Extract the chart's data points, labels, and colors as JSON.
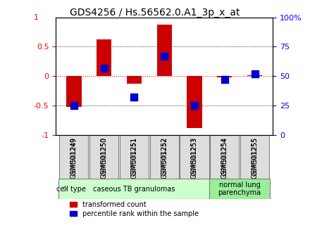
{
  "title": "GDS4256 / Hs.56562.0.A1_3p_x_at",
  "samples": [
    "GSM501249",
    "GSM501250",
    "GSM501251",
    "GSM501252",
    "GSM501253",
    "GSM501254",
    "GSM501255"
  ],
  "transformed_counts": [
    -0.52,
    0.62,
    -0.13,
    0.88,
    -0.88,
    -0.02,
    0.02
  ],
  "percentile_ranks": [
    25,
    57,
    32,
    67,
    25,
    47,
    52
  ],
  "bar_color": "#CC0000",
  "dot_color": "#0000CC",
  "groups": [
    {
      "label": "caseous TB granulomas",
      "samples": [
        0,
        1,
        2,
        3,
        4
      ],
      "color": "#CCFFCC"
    },
    {
      "label": "normal lung\nparenchyma",
      "samples": [
        5,
        6
      ],
      "color": "#99EE99"
    }
  ],
  "ylim": [
    -1.0,
    1.0
  ],
  "yticks_left": [
    -1,
    -0.5,
    0,
    0.5
  ],
  "yticks_left_labels": [
    "-1",
    "-0.5",
    "0",
    "0.5"
  ],
  "yticks_right": [
    0,
    25,
    50,
    75,
    100
  ],
  "yticks_right_labels": [
    "0",
    "25",
    "50",
    "75",
    "100%"
  ],
  "hlines": [
    0.5,
    0,
    -0.5
  ],
  "background_color": "#ffffff",
  "legend_red": "transformed count",
  "legend_blue": "percentile rank within the sample",
  "cell_type_label": "cell type"
}
